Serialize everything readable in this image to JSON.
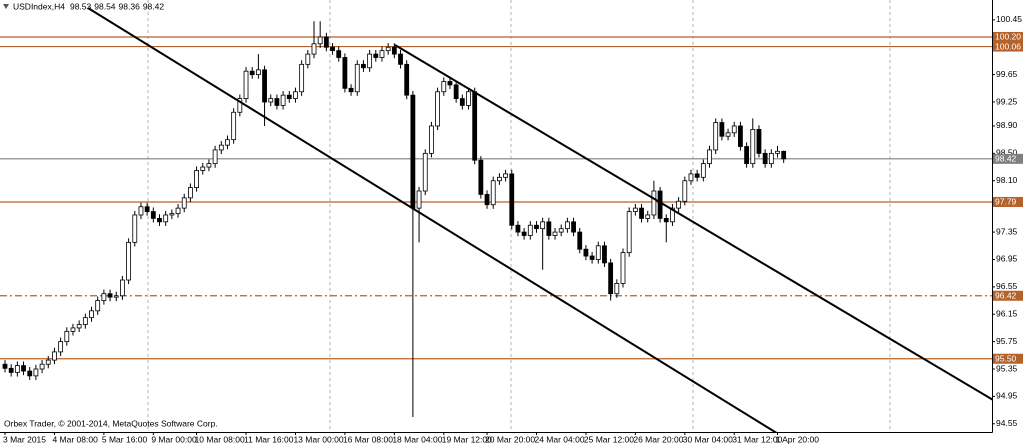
{
  "chart_data": {
    "type": "candlestick",
    "title": "USDIndex,H4",
    "footer": "Orbex Trader, © 2001-2014, MetaQuotes Software Corp.",
    "up_color": "#ffffff",
    "down_color": "#000000",
    "outline_color": "#000000",
    "ylim": [
      94.43,
      100.74
    ],
    "yticks": [
      100.45,
      99.65,
      99.25,
      {
        "value": 98.9,
        "label": "98.90"
      },
      {
        "value": 98.5,
        "label": "98.50"
      },
      {
        "value": 98.1,
        "label": "98.10"
      },
      97.75,
      97.35,
      96.95,
      96.55,
      96.15,
      95.75,
      95.35,
      94.95,
      94.55
    ],
    "levels": [
      {
        "value": 100.2,
        "label": "100.20",
        "color": "#b4622a",
        "style": "solid"
      },
      {
        "value": 100.06,
        "color": "#b4622a",
        "style": "solid"
      },
      {
        "value": 98.42,
        "color": "#7f7f7f",
        "style": "solid"
      },
      {
        "value": 97.79,
        "color": "#b4622a",
        "style": "solid"
      },
      {
        "value": 96.42,
        "color": "#b4622a",
        "style": "dashdot"
      },
      {
        "value": 95.5,
        "label": "95.50",
        "color": "#b4622a",
        "style": "solid"
      }
    ],
    "categories": [
      "3 Mar 2015",
      null,
      null,
      null,
      null,
      null,
      null,
      null,
      "4 Mar 08:00",
      null,
      null,
      null,
      null,
      null,
      null,
      null,
      "5 Mar 16:00",
      null,
      null,
      null,
      null,
      null,
      null,
      null,
      "9 Mar 00:00",
      null,
      null,
      null,
      null,
      null,
      null,
      "10 Mar 08:00",
      null,
      null,
      null,
      null,
      null,
      null,
      null,
      "11 Mar 16:00",
      null,
      null,
      null,
      null,
      null,
      null,
      null,
      "13 Mar 00:00",
      null,
      null,
      null,
      null,
      null,
      null,
      null,
      "16 Mar 08:00",
      null,
      null,
      null,
      null,
      null,
      null,
      null,
      "18 Mar 04:00",
      null,
      null,
      null,
      null,
      null,
      null,
      null,
      "19 Mar 12:00",
      null,
      null,
      null,
      null,
      null,
      null,
      "20 Mar 20:00",
      null,
      null,
      null,
      null,
      null,
      null,
      null,
      "24 Mar 04:00",
      null,
      null,
      null,
      null,
      null,
      null,
      null,
      "25 Mar 12:00",
      null,
      null,
      null,
      null,
      null,
      null,
      null,
      "26 Mar 20:00",
      null,
      null,
      null,
      null,
      null,
      null,
      null,
      "30 Mar 04:00",
      null,
      null,
      null,
      null,
      null,
      null,
      null,
      "31 Mar 12:00",
      null,
      null,
      null,
      null,
      null,
      null,
      "1 Apr 20:00",
      null
    ],
    "ohlc": [
      [
        95.42,
        95.48,
        95.3,
        95.36
      ],
      [
        95.36,
        95.42,
        95.24,
        95.3
      ],
      [
        95.3,
        95.46,
        95.24,
        95.4
      ],
      [
        95.4,
        95.46,
        95.26,
        95.32
      ],
      [
        95.32,
        95.38,
        95.19,
        95.25
      ],
      [
        95.25,
        95.41,
        95.19,
        95.35
      ],
      [
        95.35,
        95.48,
        95.29,
        95.42
      ],
      [
        95.42,
        95.54,
        95.36,
        95.48
      ],
      [
        95.48,
        95.66,
        95.42,
        95.6
      ],
      [
        95.6,
        95.81,
        95.54,
        95.75
      ],
      [
        95.75,
        95.96,
        95.69,
        95.9
      ],
      [
        95.9,
        96.01,
        95.84,
        95.95
      ],
      [
        95.95,
        96.06,
        95.89,
        96.0
      ],
      [
        96.0,
        96.16,
        95.94,
        96.1
      ],
      [
        96.1,
        96.26,
        96.04,
        96.2
      ],
      [
        96.2,
        96.41,
        96.14,
        96.35
      ],
      [
        96.35,
        96.51,
        96.29,
        96.45
      ],
      [
        96.45,
        96.51,
        96.34,
        96.4
      ],
      [
        96.4,
        96.48,
        96.34,
        96.42
      ],
      [
        96.42,
        96.71,
        96.36,
        96.65
      ],
      [
        96.65,
        97.26,
        96.59,
        97.2
      ],
      [
        97.2,
        97.66,
        97.14,
        97.6
      ],
      [
        97.6,
        97.78,
        97.54,
        97.72
      ],
      [
        97.72,
        97.78,
        97.59,
        97.65
      ],
      [
        97.65,
        97.71,
        97.49,
        97.55
      ],
      [
        97.55,
        97.61,
        97.44,
        97.5
      ],
      [
        97.5,
        97.66,
        97.44,
        97.6
      ],
      [
        97.6,
        97.68,
        97.54,
        97.62
      ],
      [
        97.62,
        97.76,
        97.56,
        97.7
      ],
      [
        97.7,
        97.91,
        97.64,
        97.85
      ],
      [
        97.85,
        98.06,
        97.79,
        98.0
      ],
      [
        98.0,
        98.31,
        97.94,
        98.25
      ],
      [
        98.25,
        98.36,
        98.19,
        98.3
      ],
      [
        98.3,
        98.41,
        98.24,
        98.35
      ],
      [
        98.35,
        98.61,
        98.29,
        98.55
      ],
      [
        98.55,
        98.68,
        98.49,
        98.62
      ],
      [
        98.62,
        98.76,
        98.56,
        98.7
      ],
      [
        98.7,
        99.16,
        98.64,
        99.1
      ],
      [
        99.1,
        99.36,
        99.04,
        99.3
      ],
      [
        99.3,
        99.76,
        99.24,
        99.7
      ],
      [
        99.7,
        99.76,
        99.59,
        99.65
      ],
      [
        99.65,
        99.95,
        99.59,
        99.72
      ],
      [
        99.72,
        99.78,
        98.9,
        99.25
      ],
      [
        99.25,
        99.36,
        99.19,
        99.3
      ],
      [
        99.3,
        99.36,
        99.14,
        99.2
      ],
      [
        99.2,
        99.41,
        99.14,
        99.35
      ],
      [
        99.35,
        99.41,
        99.24,
        99.3
      ],
      [
        99.3,
        99.46,
        99.24,
        99.4
      ],
      [
        99.4,
        99.86,
        99.34,
        99.8
      ],
      [
        99.8,
        100.01,
        99.74,
        99.95
      ],
      [
        99.95,
        100.43,
        99.89,
        100.1
      ],
      [
        100.1,
        100.43,
        100.04,
        100.2
      ],
      [
        100.2,
        100.26,
        99.99,
        100.05
      ],
      [
        100.05,
        100.11,
        99.94,
        100.0
      ],
      [
        100.0,
        100.06,
        99.84,
        99.9
      ],
      [
        99.9,
        99.96,
        99.39,
        99.45
      ],
      [
        99.45,
        99.51,
        99.34,
        99.4
      ],
      [
        99.4,
        99.86,
        99.34,
        99.8
      ],
      [
        99.8,
        99.86,
        99.69,
        99.75
      ],
      [
        99.75,
        100.01,
        99.69,
        99.95
      ],
      [
        99.95,
        100.01,
        99.84,
        99.9
      ],
      [
        99.9,
        100.06,
        99.84,
        100.0
      ],
      [
        100.0,
        100.11,
        99.94,
        100.05
      ],
      [
        100.05,
        100.11,
        99.89,
        99.95
      ],
      [
        99.95,
        100.01,
        99.74,
        99.8
      ],
      [
        99.8,
        99.86,
        99.29,
        99.35
      ],
      [
        99.35,
        99.41,
        94.65,
        97.7
      ],
      [
        97.7,
        98.01,
        97.2,
        97.95
      ],
      [
        97.95,
        98.56,
        97.89,
        98.5
      ],
      [
        98.5,
        98.96,
        98.44,
        98.9
      ],
      [
        98.9,
        99.46,
        98.84,
        99.4
      ],
      [
        99.4,
        99.61,
        99.34,
        99.55
      ],
      [
        99.55,
        99.61,
        99.44,
        99.5
      ],
      [
        99.5,
        99.56,
        99.24,
        99.3
      ],
      [
        99.3,
        99.36,
        99.14,
        99.2
      ],
      [
        99.2,
        99.46,
        99.14,
        99.4
      ],
      [
        99.4,
        99.46,
        98.34,
        98.4
      ],
      [
        98.4,
        98.46,
        97.84,
        97.9
      ],
      [
        97.9,
        97.96,
        97.69,
        97.75
      ],
      [
        97.75,
        98.16,
        97.69,
        98.1
      ],
      [
        98.1,
        98.21,
        98.04,
        98.15
      ],
      [
        98.15,
        98.26,
        98.09,
        98.2
      ],
      [
        98.2,
        98.26,
        97.39,
        97.45
      ],
      [
        97.45,
        97.51,
        97.29,
        97.35
      ],
      [
        97.35,
        97.41,
        97.24,
        97.3
      ],
      [
        97.3,
        97.51,
        97.24,
        97.45
      ],
      [
        97.45,
        97.51,
        97.34,
        97.4
      ],
      [
        97.4,
        97.56,
        96.8,
        97.5
      ],
      [
        97.5,
        97.56,
        97.24,
        97.3
      ],
      [
        97.3,
        97.41,
        97.24,
        97.35
      ],
      [
        97.35,
        97.46,
        97.29,
        97.4
      ],
      [
        97.4,
        97.56,
        97.34,
        97.5
      ],
      [
        97.5,
        97.56,
        97.29,
        97.35
      ],
      [
        97.35,
        97.41,
        97.04,
        97.1
      ],
      [
        97.1,
        97.16,
        96.94,
        97.0
      ],
      [
        97.0,
        97.06,
        96.89,
        96.95
      ],
      [
        96.95,
        97.21,
        96.89,
        97.15
      ],
      [
        97.15,
        97.21,
        96.84,
        96.9
      ],
      [
        96.9,
        96.96,
        96.35,
        96.45
      ],
      [
        96.45,
        96.66,
        96.39,
        96.6
      ],
      [
        96.6,
        97.11,
        96.54,
        97.05
      ],
      [
        97.05,
        97.71,
        96.99,
        97.65
      ],
      [
        97.65,
        97.76,
        97.59,
        97.7
      ],
      [
        97.7,
        97.76,
        97.49,
        97.55
      ],
      [
        97.55,
        97.66,
        97.49,
        97.6
      ],
      [
        97.6,
        98.1,
        97.54,
        97.95
      ],
      [
        97.95,
        98.01,
        97.49,
        97.55
      ],
      [
        97.55,
        97.61,
        97.2,
        97.5
      ],
      [
        97.5,
        97.76,
        97.44,
        97.7
      ],
      [
        97.7,
        97.86,
        97.64,
        97.8
      ],
      [
        97.8,
        98.16,
        97.74,
        98.1
      ],
      [
        98.1,
        98.26,
        98.04,
        98.2
      ],
      [
        98.2,
        98.26,
        98.09,
        98.15
      ],
      [
        98.15,
        98.41,
        98.09,
        98.35
      ],
      [
        98.35,
        98.61,
        98.29,
        98.55
      ],
      [
        98.55,
        99.01,
        98.49,
        98.95
      ],
      [
        98.95,
        99.01,
        98.69,
        98.75
      ],
      [
        98.75,
        98.86,
        98.69,
        98.8
      ],
      [
        98.8,
        98.96,
        98.74,
        98.9
      ],
      [
        98.9,
        98.96,
        98.54,
        98.6
      ],
      [
        98.6,
        98.66,
        98.29,
        98.35
      ],
      [
        98.35,
        99.01,
        98.29,
        98.85
      ],
      [
        98.85,
        98.91,
        98.44,
        98.5
      ],
      [
        98.5,
        98.56,
        98.29,
        98.35
      ],
      [
        98.35,
        98.56,
        98.29,
        98.5
      ],
      [
        98.5,
        98.61,
        98.44,
        98.53
      ],
      [
        98.53,
        98.54,
        98.36,
        98.42
      ]
    ]
  }
}
